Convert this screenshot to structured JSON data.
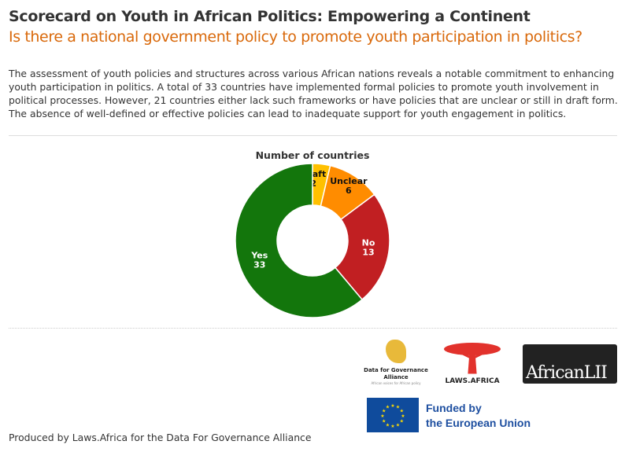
{
  "title": "Scorecard on Youth in African Politics: Empowering a Continent",
  "subtitle": "Is there a national government policy to promote youth participation in politics?",
  "description": "The assessment of youth policies and structures across various African nations reveals a notable commitment to enhancing youth participation in politics. A total of 33 countries have implemented formal policies to promote youth involvement in political processes. However, 21 countries either lack such frameworks or have policies that are unclear or still in draft form. The absence of well-defined or effective policies can lead to inadequate support for youth engagement in politics.",
  "chart_data": {
    "type": "pie",
    "donut": true,
    "title": "Number of countries",
    "categories": [
      "Draft",
      "Unclear",
      "No",
      "Yes"
    ],
    "values": [
      2,
      6,
      13,
      33
    ],
    "colors": [
      "#ffc000",
      "#ff8c00",
      "#c11f22",
      "#13760c"
    ],
    "label_colors": [
      "#111",
      "#111",
      "#fff",
      "#fff"
    ]
  },
  "logos": {
    "dga": "Data for Governance Alliance",
    "dga_tagline": "African voices for African policy",
    "laws": "LAWS.AFRICA",
    "lii": "AfricanLII",
    "eu_line1": "Funded by",
    "eu_line2": "the European Union"
  },
  "footer": "Produced by Laws.Africa for the Data For Governance Alliance"
}
